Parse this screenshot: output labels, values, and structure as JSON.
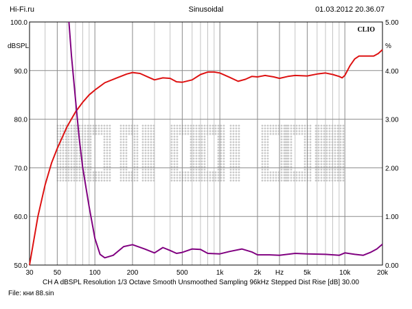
{
  "header": {
    "left": "Hi-Fi.ru",
    "center": "Sinusoidal",
    "right": "01.03.2012 20.36.07"
  },
  "footer": {
    "settings": "CH A   dBSPL   Resolution 1/3 Octave   Smooth Unsmoothed   Sampling 96kHz   Stepped   Dist Rise [dB] 30.00",
    "file": "File: кни 88.sin"
  },
  "watermark": "HI-FI.RU",
  "chart_data": {
    "type": "line",
    "brand": "CLIO",
    "x_scale": "log",
    "xlim": [
      30,
      20000
    ],
    "ylim_left": [
      50,
      100
    ],
    "ylim_right": [
      0,
      5
    ],
    "ylabel_left": "dBSPL",
    "ylabel_right": "%",
    "x_ticks": [
      {
        "value": 30,
        "label": "30"
      },
      {
        "value": 50,
        "label": "50"
      },
      {
        "value": 100,
        "label": "100"
      },
      {
        "value": 200,
        "label": "200"
      },
      {
        "value": 500,
        "label": "500"
      },
      {
        "value": 1000,
        "label": "1k"
      },
      {
        "value": 2000,
        "label": "2k"
      },
      {
        "value": 3000,
        "label": "Hz"
      },
      {
        "value": 5000,
        "label": "5k"
      },
      {
        "value": 10000,
        "label": "10k"
      },
      {
        "value": 20000,
        "label": "20k"
      }
    ],
    "y_ticks_left": [
      {
        "value": 100,
        "label": "100.0"
      },
      {
        "value": 90,
        "label": "90.0"
      },
      {
        "value": 80,
        "label": "80.0"
      },
      {
        "value": 70,
        "label": "70.0"
      },
      {
        "value": 60,
        "label": "60.0"
      },
      {
        "value": 50,
        "label": "50.0"
      }
    ],
    "y_ticks_right": [
      {
        "value": 5,
        "label": "5.00"
      },
      {
        "value": 4,
        "label": "4.00"
      },
      {
        "value": 3,
        "label": "3.00"
      },
      {
        "value": 2,
        "label": "2.00"
      },
      {
        "value": 1,
        "label": "1.00"
      },
      {
        "value": 0,
        "label": "0.00"
      }
    ],
    "grid_minor_x": [
      40,
      60,
      70,
      80,
      90,
      300,
      400,
      600,
      700,
      800,
      900,
      3000,
      4000,
      6000,
      7000,
      8000,
      9000
    ],
    "series": [
      {
        "color": "#dd1111",
        "axis": "left",
        "points": [
          [
            30,
            50
          ],
          [
            35,
            60
          ],
          [
            40,
            66.5
          ],
          [
            45,
            71
          ],
          [
            50,
            74
          ],
          [
            60,
            78.5
          ],
          [
            70,
            81.5
          ],
          [
            80,
            83.5
          ],
          [
            90,
            85
          ],
          [
            100,
            86
          ],
          [
            120,
            87.5
          ],
          [
            150,
            88.5
          ],
          [
            180,
            89.3
          ],
          [
            200,
            89.6
          ],
          [
            230,
            89.4
          ],
          [
            270,
            88.6
          ],
          [
            300,
            88.1
          ],
          [
            350,
            88.5
          ],
          [
            400,
            88.4
          ],
          [
            450,
            87.7
          ],
          [
            500,
            87.6
          ],
          [
            600,
            88.1
          ],
          [
            700,
            89.2
          ],
          [
            800,
            89.7
          ],
          [
            900,
            89.7
          ],
          [
            1000,
            89.5
          ],
          [
            1200,
            88.6
          ],
          [
            1400,
            87.8
          ],
          [
            1600,
            88.2
          ],
          [
            1800,
            88.8
          ],
          [
            2000,
            88.7
          ],
          [
            2300,
            89.0
          ],
          [
            2700,
            88.7
          ],
          [
            3000,
            88.4
          ],
          [
            3500,
            88.8
          ],
          [
            4000,
            89.0
          ],
          [
            5000,
            88.9
          ],
          [
            6000,
            89.3
          ],
          [
            7000,
            89.5
          ],
          [
            8000,
            89.2
          ],
          [
            9000,
            88.8
          ],
          [
            9500,
            88.5
          ],
          [
            10000,
            89.0
          ],
          [
            11000,
            91.0
          ],
          [
            12000,
            92.4
          ],
          [
            13000,
            93.0
          ],
          [
            15000,
            93.0
          ],
          [
            17000,
            93.0
          ],
          [
            18500,
            93.5
          ],
          [
            20000,
            94.3
          ]
        ]
      },
      {
        "color": "#800080",
        "axis": "right",
        "points": [
          [
            62,
            5.0
          ],
          [
            65,
            4.3
          ],
          [
            70,
            3.4
          ],
          [
            75,
            2.6
          ],
          [
            80,
            2.0
          ],
          [
            90,
            1.2
          ],
          [
            100,
            0.55
          ],
          [
            110,
            0.22
          ],
          [
            120,
            0.15
          ],
          [
            140,
            0.2
          ],
          [
            170,
            0.38
          ],
          [
            200,
            0.42
          ],
          [
            250,
            0.33
          ],
          [
            300,
            0.25
          ],
          [
            350,
            0.36
          ],
          [
            400,
            0.3
          ],
          [
            450,
            0.24
          ],
          [
            500,
            0.26
          ],
          [
            600,
            0.33
          ],
          [
            700,
            0.32
          ],
          [
            800,
            0.24
          ],
          [
            1000,
            0.23
          ],
          [
            1200,
            0.28
          ],
          [
            1500,
            0.33
          ],
          [
            1800,
            0.27
          ],
          [
            2000,
            0.21
          ],
          [
            2500,
            0.21
          ],
          [
            3000,
            0.2
          ],
          [
            4000,
            0.24
          ],
          [
            5000,
            0.23
          ],
          [
            7000,
            0.22
          ],
          [
            9000,
            0.2
          ],
          [
            10000,
            0.25
          ],
          [
            12000,
            0.22
          ],
          [
            14000,
            0.2
          ],
          [
            16000,
            0.26
          ],
          [
            18000,
            0.33
          ],
          [
            20000,
            0.43
          ]
        ]
      }
    ]
  }
}
